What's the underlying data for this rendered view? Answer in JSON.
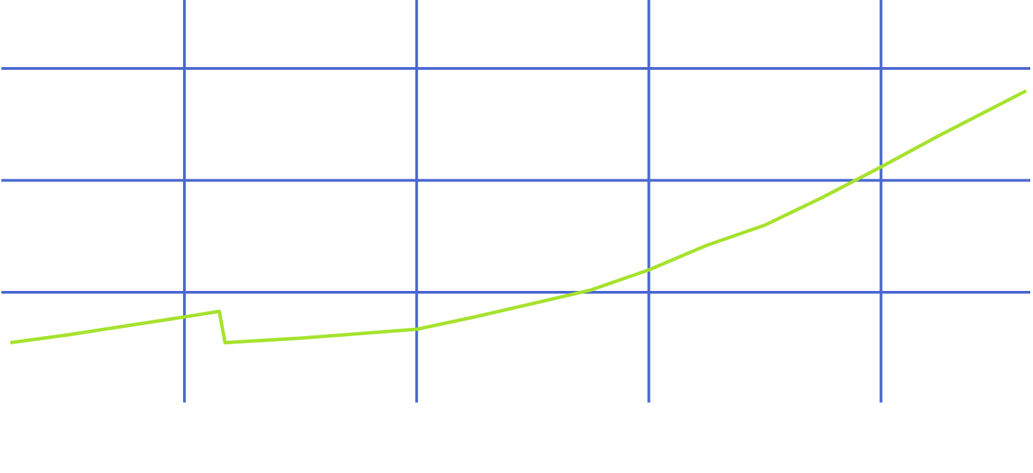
{
  "chart_data": {
    "type": "line",
    "grid": true,
    "colors": {
      "grid": "#4a68d0",
      "series": "#a6e22e",
      "background": "#ffffff"
    },
    "xlim": [
      0,
      1.75
    ],
    "ylim": [
      -1,
      2.5
    ],
    "x_gridlines": [
      0.3,
      0.7,
      1.1,
      1.5
    ],
    "y_gridlines": [
      0,
      1,
      2
    ],
    "series": [
      {
        "x": [
          0.0,
          0.1,
          0.2,
          0.3,
          0.36,
          0.37,
          0.5,
          0.7,
          0.8,
          0.9,
          1.0,
          1.1,
          1.2,
          1.3,
          1.4,
          1.5,
          1.6,
          1.75
        ],
        "y": [
          -0.45,
          -0.38,
          -0.3,
          -0.22,
          -0.17,
          -0.45,
          -0.41,
          -0.33,
          -0.22,
          -0.1,
          0.02,
          0.2,
          0.42,
          0.6,
          0.85,
          1.12,
          1.4,
          1.8
        ]
      }
    ]
  }
}
